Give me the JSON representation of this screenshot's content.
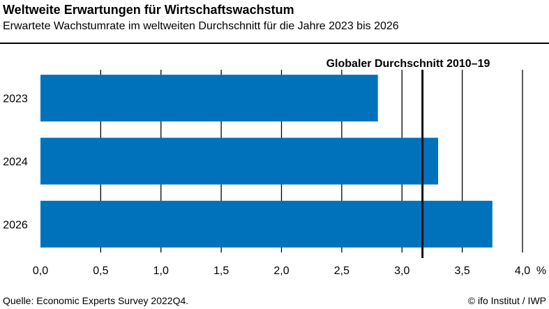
{
  "header": {
    "title": "Weltweite Erwartungen für Wirtschaftswachstum",
    "subtitle": "Erwartete Wachstumrate im weltweiten Durchschnitt für die Jahre 2023 bis 2026"
  },
  "footer": {
    "source": "Quelle: Economic Experts Survey 2022Q4.",
    "credit": "© ifo Institut / IWP"
  },
  "chart_data": {
    "type": "bar",
    "orientation": "horizontal",
    "categories": [
      "2023",
      "2024",
      "2026"
    ],
    "values": [
      2.8,
      3.3,
      3.75
    ],
    "xlim": [
      0,
      4.0
    ],
    "xticks": [
      "0,0",
      "0,5",
      "1,0",
      "1,5",
      "2,0",
      "2,5",
      "3,0",
      "3,5",
      "4,0"
    ],
    "xunit": "%",
    "grid": "vertical",
    "bar_color": "#0072BB",
    "reference_line": {
      "label": "Globaler Durchschnitt 2010–19",
      "value": 3.17
    }
  }
}
